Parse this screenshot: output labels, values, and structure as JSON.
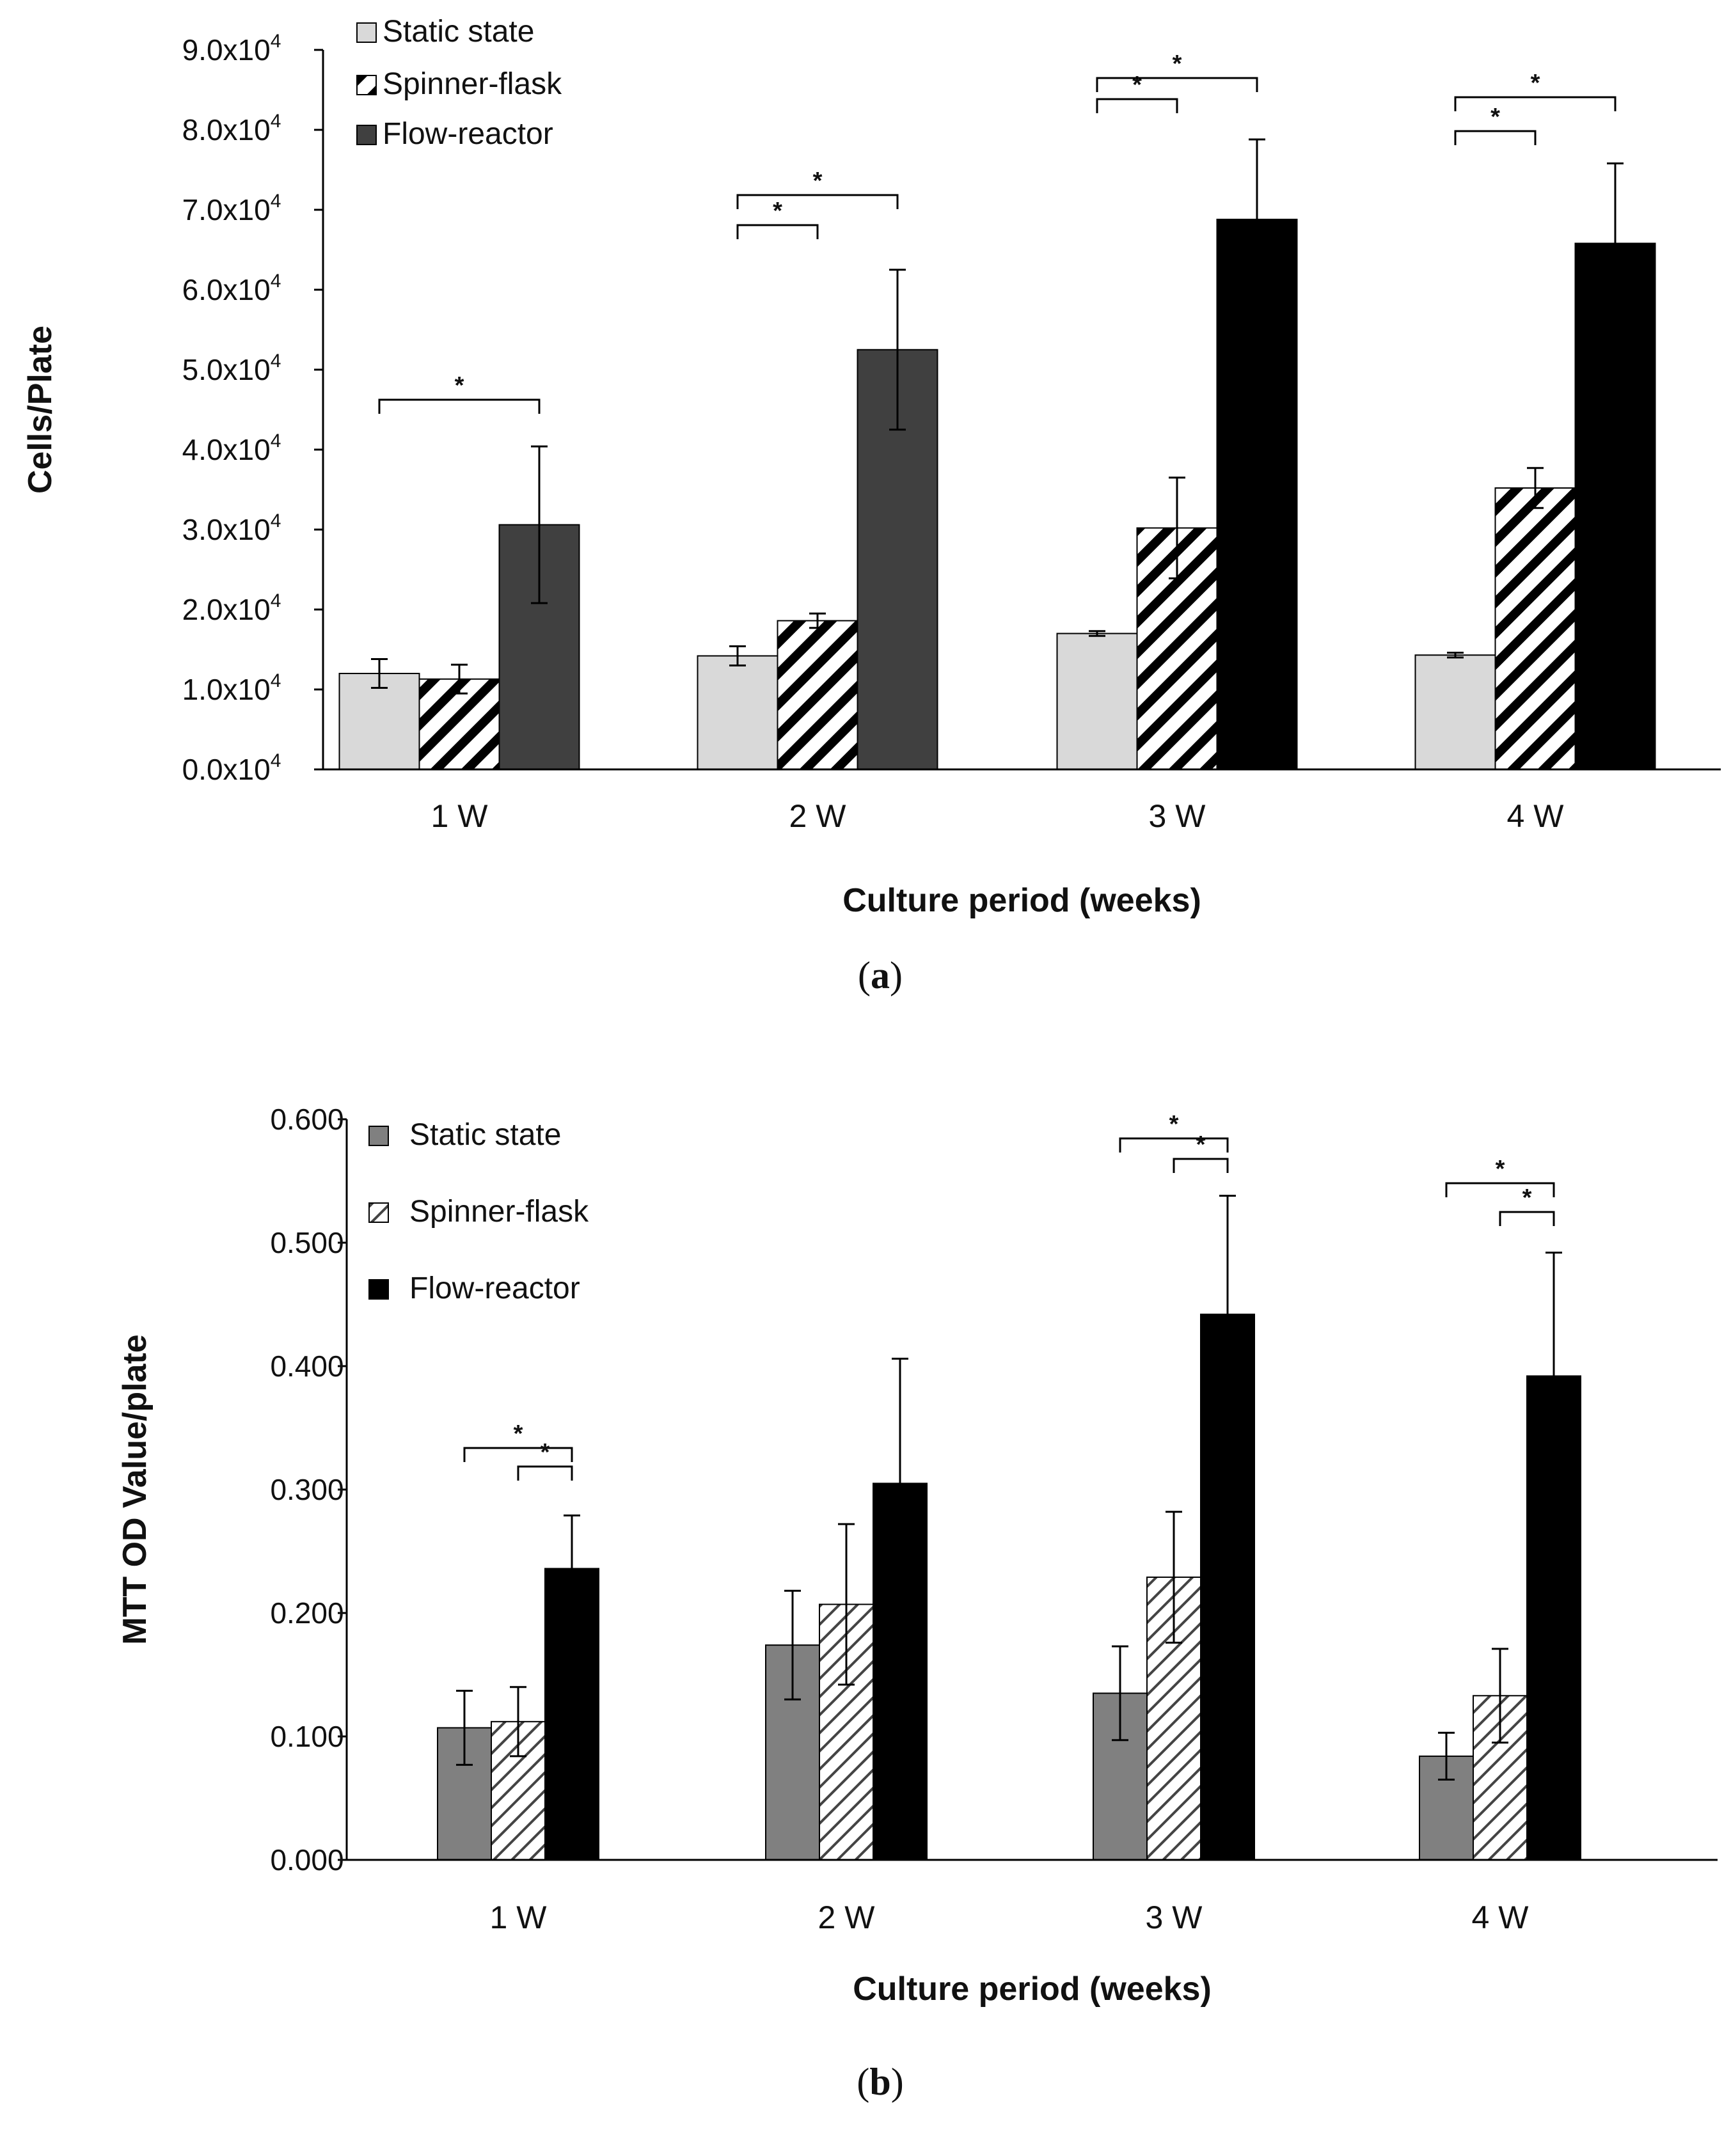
{
  "chart_data": [
    {
      "type": "bar",
      "panel": "a",
      "caption_letter": "a",
      "categories": [
        "1 W",
        "2 W",
        "3 W",
        "4 W"
      ],
      "series": [
        {
          "name": "Static state",
          "values": [
            12000,
            14200,
            17000,
            14300
          ],
          "errors": [
            1800,
            1200,
            300,
            300
          ],
          "fill": "#d9d9d9",
          "pattern": "solid"
        },
        {
          "name": "Spinner-flask",
          "values": [
            11300,
            18600,
            30200,
            35200
          ],
          "errors": [
            1800,
            900,
            6300,
            2500
          ],
          "fill": "#ffffff",
          "pattern": "hatch"
        },
        {
          "name": "Flow-reactor",
          "values": [
            30600,
            52500,
            68800,
            65800
          ],
          "errors": [
            9800,
            10000,
            10000,
            10000
          ],
          "fill": "#404040",
          "pattern": "solid",
          "fills_by_category": [
            "#404040",
            "#404040",
            "#000000",
            "#000000"
          ]
        }
      ],
      "ylim": [
        0,
        90000
      ],
      "yticks": [
        0,
        10000,
        20000,
        30000,
        40000,
        50000,
        60000,
        70000,
        80000,
        90000
      ],
      "ytick_labels": [
        "0.0x10",
        "1.0x10",
        "2.0x10",
        "3.0x10",
        "4.0x10",
        "5.0x10",
        "6.0x10",
        "7.0x10",
        "8.0x10",
        "9.0x10"
      ],
      "ytick_exponent": "4",
      "ylabel": "Cells/Plate",
      "xlabel": "Culture period (weeks)",
      "legend": {
        "position": "top-left",
        "entries": [
          "Static state",
          "Spinner-flask",
          "Flow-reactor"
        ]
      },
      "significance": [
        {
          "category": "1 W",
          "from": "Static state",
          "to": "Flow-reactor",
          "label": "*"
        },
        {
          "category": "2 W",
          "from": "Static state",
          "to": "Spinner-flask",
          "label": "*"
        },
        {
          "category": "2 W",
          "from": "Static state",
          "to": "Flow-reactor",
          "label": "*"
        },
        {
          "category": "3 W",
          "from": "Static state",
          "to": "Spinner-flask",
          "label": "*"
        },
        {
          "category": "3 W",
          "from": "Static state",
          "to": "Flow-reactor",
          "label": "*"
        },
        {
          "category": "4 W",
          "from": "Static state",
          "to": "Spinner-flask",
          "label": "*"
        },
        {
          "category": "4 W",
          "from": "Static state",
          "to": "Flow-reactor",
          "label": "*"
        }
      ]
    },
    {
      "type": "bar",
      "panel": "b",
      "caption_letter": "b",
      "categories": [
        "1 W",
        "2 W",
        "3 W",
        "4 W"
      ],
      "series": [
        {
          "name": "Static state",
          "values": [
            0.107,
            0.174,
            0.135,
            0.084
          ],
          "errors": [
            0.03,
            0.044,
            0.038,
            0.019
          ],
          "fill": "#808080",
          "pattern": "solid"
        },
        {
          "name": "Spinner-flask",
          "values": [
            0.112,
            0.207,
            0.229,
            0.133
          ],
          "errors": [
            0.028,
            0.065,
            0.053,
            0.038
          ],
          "fill": "#ffffff",
          "pattern": "hatch"
        },
        {
          "name": "Flow-reactor",
          "values": [
            0.236,
            0.305,
            0.442,
            0.392
          ],
          "errors": [
            0.043,
            0.101,
            0.096,
            0.1
          ],
          "fill": "#000000",
          "pattern": "solid"
        }
      ],
      "ylim": [
        0,
        0.6
      ],
      "yticks": [
        0,
        0.1,
        0.2,
        0.3,
        0.4,
        0.5,
        0.6
      ],
      "ytick_labels": [
        "0.000",
        "0.100",
        "0.200",
        "0.300",
        "0.400",
        "0.500",
        "0.600"
      ],
      "ylabel": "MTT OD Value/plate",
      "xlabel": "Culture period (weeks)",
      "legend": {
        "position": "top-left",
        "entries": [
          "Static state",
          "Spinner-flask",
          "Flow-reactor"
        ]
      },
      "significance": [
        {
          "category": "1 W",
          "from": "Static state",
          "to": "Flow-reactor",
          "label": "*"
        },
        {
          "category": "1 W",
          "from": "Spinner-flask",
          "to": "Flow-reactor",
          "label": "*"
        },
        {
          "category": "3 W",
          "from": "Static state",
          "to": "Flow-reactor",
          "label": "*"
        },
        {
          "category": "3 W",
          "from": "Spinner-flask",
          "to": "Flow-reactor",
          "label": "*"
        },
        {
          "category": "4 W",
          "from": "Static state",
          "to": "Flow-reactor",
          "label": "*"
        },
        {
          "category": "4 W",
          "from": "Spinner-flask",
          "to": "Flow-reactor",
          "label": "*"
        }
      ]
    }
  ]
}
